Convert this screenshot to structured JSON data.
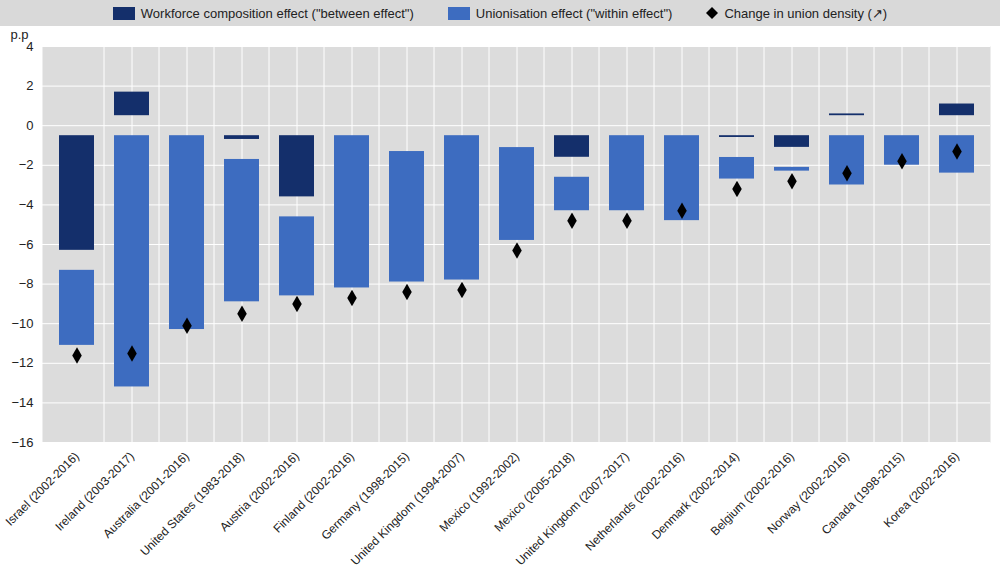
{
  "chart_data": {
    "type": "bar",
    "stacked": true,
    "grid": true,
    "legend": "top",
    "ylabel": "p.p",
    "categories": [
      "Israel (2002-2016)",
      "Ireland (2003-2017)",
      "Australia (2001-2016)",
      "United States (1983-2018)",
      "Austria (2002-2016)",
      "Finland (2002-2016)",
      "Germany (1998-2015)",
      "United Kingdom (1994-2007)",
      "Mexico (1992-2002)",
      "Mexico (2005-2018)",
      "United Kingdom (2007-2017)",
      "Netherlands (2002-2016)",
      "Denmark (2002-2014)",
      "Belgium (2002-2016)",
      "Norway (2002-2016)",
      "Canada (1998-2015)",
      "Korea (2002-2016)"
    ],
    "series": [
      {
        "name": "Workforce composition effect (\"between effect\")",
        "color": "#142f6b",
        "values": [
          -6.8,
          2.2,
          0.7,
          -1.2,
          -4.1,
          0,
          -0.8,
          0,
          -0.6,
          -2.1,
          0,
          1.0,
          -1.1,
          -1.6,
          1.1,
          0.7,
          1.6
        ]
      },
      {
        "name": "Unionisation effect (\"within effect\")",
        "color": "#3d6cc0",
        "values": [
          -4.8,
          -13.7,
          -10.8,
          -8.2,
          -5.0,
          -8.7,
          -7.6,
          -8.3,
          -5.7,
          -2.7,
          -4.8,
          -5.3,
          -2.1,
          -1.2,
          -3.5,
          -2.5,
          -2.9
        ]
      },
      {
        "name": "Change in union density (↗)",
        "type": "scatter",
        "marker": "diamond",
        "color": "#000000",
        "values": [
          -11.6,
          -11.5,
          -10.1,
          -9.5,
          -9.0,
          -8.7,
          -8.4,
          -8.3,
          -6.3,
          -4.8,
          -4.8,
          -4.3,
          -3.2,
          -2.8,
          -2.4,
          -1.8,
          -1.3
        ]
      }
    ],
    "ylim": [
      -16,
      4
    ],
    "yticks": [
      -16,
      -14,
      -12,
      -10,
      -8,
      -6,
      -4,
      -2,
      0,
      2,
      4
    ]
  }
}
